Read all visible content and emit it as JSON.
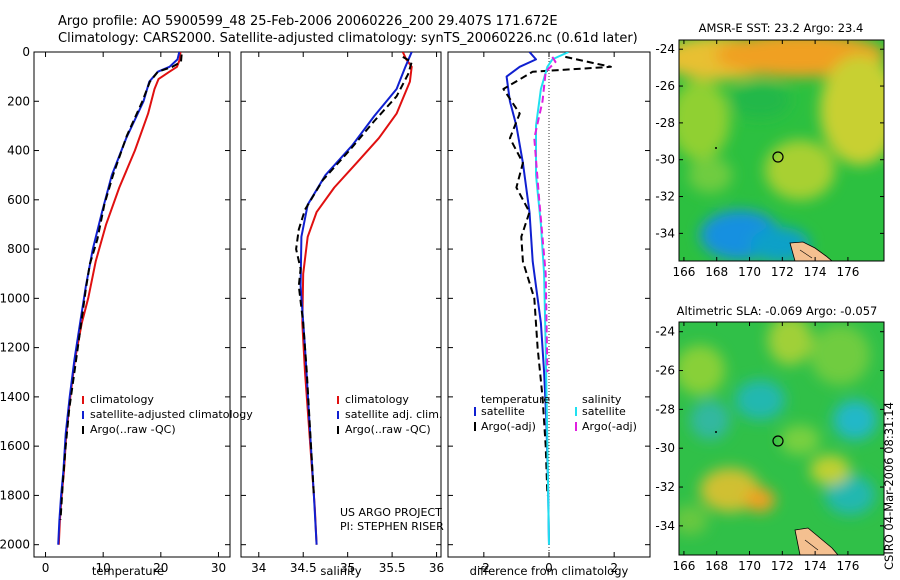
{
  "header": {
    "line1": "Argo profile: AO 5900599_48 25-Feb-2006 20060226_200 29.407S 171.672E",
    "line2": "Climatology: CARS2000. Satellite-adjusted climatology: synTS_20060226.nc (0.61d later)"
  },
  "colors": {
    "climatology": "#e01010",
    "satellite": "#1020d0",
    "argo": "#000000",
    "satellite_salinity": "#20e0f0",
    "argo_salinity": "#e020e0"
  },
  "chart_data": [
    {
      "type": "line",
      "xlabel": "temperature",
      "xlim": [
        -2,
        32
      ],
      "ylim": [
        2050,
        0
      ],
      "xticks": [
        0,
        10,
        20,
        30
      ],
      "yticks": [
        0,
        200,
        400,
        600,
        800,
        1000,
        1200,
        1400,
        1600,
        1800,
        2000
      ],
      "legend": [
        "climatology",
        "satellite-adjusted climatology",
        "Argo(..raw -QC)"
      ],
      "legend_placement": "lower-right",
      "series": [
        {
          "name": "climatology",
          "color": "#e01010",
          "style": "solid",
          "x": [
            23.4,
            23.3,
            22.8,
            21.5,
            19.6,
            18.9,
            17.8,
            15.5,
            12.8,
            10.5,
            8.7,
            7.4,
            6.3,
            5.1,
            4.3,
            3.6,
            3.2,
            2.8,
            2.5,
            2.3
          ],
          "y": [
            0,
            30,
            60,
            80,
            110,
            150,
            250,
            400,
            550,
            700,
            850,
            1000,
            1100,
            1250,
            1400,
            1550,
            1700,
            1800,
            1900,
            2000
          ]
        },
        {
          "name": "satellite-adjusted climatology",
          "color": "#1020d0",
          "style": "solid",
          "x": [
            23.2,
            22.9,
            21.5,
            19.5,
            18.0,
            17.0,
            14.0,
            11.5,
            9.8,
            8.2,
            7.0,
            6.0,
            5.0,
            4.2,
            3.5,
            3.1,
            2.7,
            2.4,
            2.2
          ],
          "y": [
            0,
            30,
            60,
            80,
            120,
            200,
            350,
            500,
            650,
            800,
            950,
            1100,
            1250,
            1400,
            1550,
            1700,
            1800,
            1900,
            2000
          ]
        },
        {
          "name": "Argo(..raw -QC)",
          "color": "#000000",
          "style": "dashed",
          "x": [
            23.6,
            23.5,
            22.0,
            19.5,
            18.1,
            16.8,
            14.1,
            11.7,
            10.2,
            9.0,
            7.7,
            7.0,
            5.9,
            5.0,
            4.1,
            3.5,
            3.0,
            2.6
          ],
          "y": [
            10,
            40,
            60,
            80,
            120,
            200,
            340,
            500,
            620,
            760,
            860,
            960,
            1150,
            1300,
            1450,
            1600,
            1750,
            1900
          ]
        }
      ]
    },
    {
      "type": "line",
      "xlabel": "salinity",
      "xlim": [
        33.8,
        36.05
      ],
      "ylim": [
        2050,
        0
      ],
      "xticks": [
        34,
        34.5,
        35,
        35.5,
        36
      ],
      "legend": [
        "climatology",
        "satellite adj. clim.",
        "Argo(..raw -QC)"
      ],
      "legend_placement": "lower-right",
      "annotation": [
        "US ARGO PROJECT",
        "PI: STEPHEN RISER"
      ],
      "series": [
        {
          "name": "climatology",
          "color": "#e01010",
          "style": "solid",
          "x": [
            35.62,
            35.66,
            35.72,
            35.7,
            35.55,
            35.35,
            35.1,
            34.85,
            34.65,
            34.55,
            34.5,
            34.49,
            34.52,
            34.56,
            34.6,
            34.63,
            34.65
          ],
          "y": [
            0,
            30,
            60,
            120,
            250,
            350,
            450,
            550,
            650,
            750,
            900,
            1100,
            1300,
            1500,
            1700,
            1850,
            2000
          ]
        },
        {
          "name": "satellite adj. clim.",
          "color": "#1020d0",
          "style": "solid",
          "x": [
            35.72,
            35.65,
            35.55,
            35.3,
            35.05,
            34.75,
            34.55,
            34.48,
            34.47,
            34.52,
            34.57,
            34.62,
            34.65
          ],
          "y": [
            0,
            60,
            150,
            260,
            380,
            500,
            620,
            750,
            950,
            1200,
            1500,
            1800,
            2000
          ]
        },
        {
          "name": "Argo(..raw -QC)",
          "color": "#000000",
          "style": "dashed",
          "x": [
            35.62,
            35.72,
            35.68,
            35.55,
            35.3,
            35.02,
            34.72,
            34.52,
            34.45,
            34.42,
            34.47,
            34.45,
            34.5,
            34.54,
            34.58,
            34.62
          ],
          "y": [
            20,
            40,
            90,
            180,
            280,
            400,
            520,
            640,
            720,
            800,
            880,
            950,
            1100,
            1300,
            1550,
            1800
          ]
        }
      ]
    },
    {
      "type": "line",
      "xlabel": "difference from climatology",
      "xlim": [
        -3.1,
        3.1
      ],
      "ylim": [
        2050,
        0
      ],
      "xticks": [
        -2,
        0,
        2
      ],
      "legend_groups": [
        {
          "title": "temperature",
          "items": [
            "satellite",
            "Argo(-adj)"
          ]
        },
        {
          "title": "salinity",
          "items": [
            "satellite",
            "Argo(-adj)"
          ]
        }
      ],
      "legend_placement": "lower-right",
      "series": [
        {
          "name": "satellite",
          "group": "temperature",
          "color": "#1020d0",
          "style": "solid",
          "x": [
            -0.6,
            -0.4,
            -0.9,
            -1.3,
            -1.2,
            -1.0,
            -0.8,
            -0.6,
            -0.5,
            -0.25,
            -0.15,
            -0.08,
            -0.03,
            0.0
          ],
          "y": [
            0,
            30,
            60,
            100,
            200,
            300,
            450,
            650,
            850,
            1100,
            1300,
            1500,
            1750,
            2000
          ]
        },
        {
          "name": "Argo(-adj)",
          "group": "temperature",
          "color": "#000000",
          "style": "dashed",
          "x": [
            0.5,
            1.2,
            1.9,
            -0.5,
            -1.4,
            -0.9,
            -1.2,
            -0.8,
            -1.0,
            -0.6,
            -0.85,
            -0.8,
            -0.45,
            -0.35,
            -0.2,
            -0.1,
            -0.05
          ],
          "y": [
            20,
            40,
            60,
            80,
            150,
            250,
            350,
            450,
            550,
            650,
            750,
            850,
            1000,
            1200,
            1400,
            1600,
            1800
          ]
        },
        {
          "name": "satellite",
          "group": "salinity",
          "color": "#20e0f0",
          "style": "solid",
          "x": [
            0.6,
            0.1,
            -0.05,
            -0.25,
            -0.4,
            -0.4,
            -0.25,
            -0.15,
            -0.1,
            -0.05,
            0.0
          ],
          "y": [
            0,
            30,
            60,
            150,
            300,
            500,
            700,
            900,
            1200,
            1600,
            2000
          ]
        },
        {
          "name": "Argo(-adj)",
          "group": "salinity",
          "color": "#e020e0",
          "style": "dashed",
          "x": [
            0.1,
            0.2,
            -0.1,
            -0.2,
            -0.45,
            -0.3,
            -0.1,
            -0.05
          ],
          "y": [
            20,
            40,
            80,
            200,
            350,
            600,
            900,
            1300
          ]
        }
      ]
    },
    {
      "type": "heatmap",
      "title": "AMSR-E SST: 23.2 Argo: 23.4",
      "xlim": [
        165.7,
        178.2
      ],
      "ylim": [
        -35.5,
        -23.5
      ],
      "xticks": [
        166,
        168,
        170,
        172,
        174,
        176
      ],
      "yticks": [
        -24,
        -26,
        -28,
        -30,
        -32,
        -34
      ],
      "marker": {
        "lon": 171.6,
        "lat": -29.4
      }
    },
    {
      "type": "heatmap",
      "title": "Altimetric SLA: -0.069 Argo: -0.057",
      "xlim": [
        165.7,
        178.2
      ],
      "ylim": [
        -35.5,
        -23.5
      ],
      "xticks": [
        166,
        168,
        170,
        172,
        174,
        176
      ],
      "yticks": [
        -24,
        -26,
        -28,
        -30,
        -32,
        -34
      ],
      "marker": {
        "lon": 171.6,
        "lat": -29.4
      }
    }
  ],
  "credit": "CSIRO 04-Mar-2006 08:31:14"
}
